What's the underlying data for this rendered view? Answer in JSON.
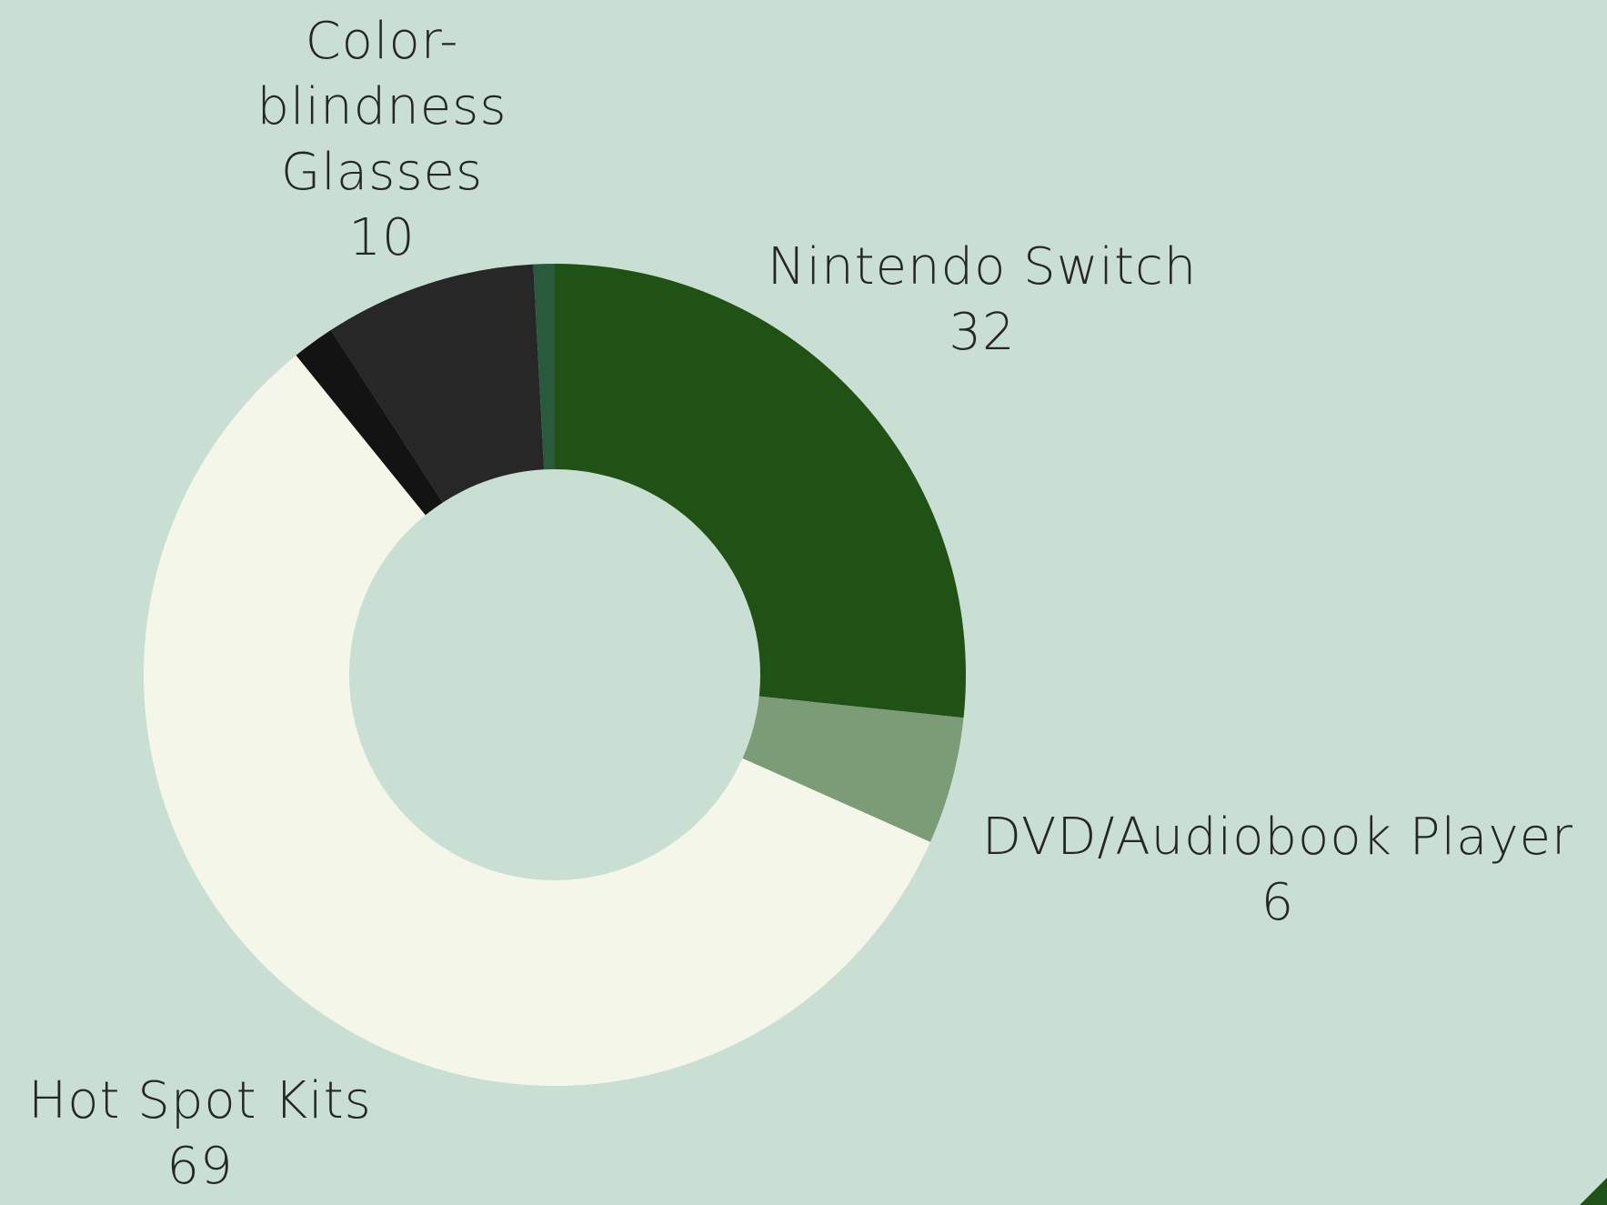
{
  "chart_data": {
    "type": "pie",
    "variant": "donut",
    "title": "",
    "slices": [
      {
        "label": "Nintendo Switch",
        "value": 32,
        "color": "#205115"
      },
      {
        "label": "DVD/Audiobook Player",
        "value": 6,
        "color": "#7c9b77"
      },
      {
        "label": "Hot Spot Kits",
        "value": 69,
        "color": "#f5f6ea"
      },
      {
        "label": "",
        "value": 2,
        "color": "#131313"
      },
      {
        "label": "Color-blindness Glasses",
        "value": 10,
        "color": "#272727"
      },
      {
        "label": "",
        "value": 1,
        "color": "#2a5a3c"
      }
    ],
    "labels": {
      "color_glasses": {
        "name": "Color-\nblindness\nGlasses",
        "value": "10"
      },
      "nintendo": {
        "name": "Nintendo Switch",
        "value": "32"
      },
      "dvd": {
        "name": "DVD/Audiobook Player",
        "value": "6"
      },
      "hotspot": {
        "name": "Hot Spot Kits",
        "value": "69"
      }
    },
    "legend": "none"
  },
  "colors": {
    "background": "#cadfd4",
    "text": "#262626",
    "corner_accent": "#1f5218"
  }
}
